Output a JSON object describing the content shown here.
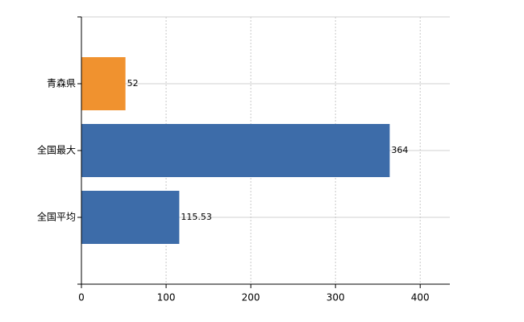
{
  "chart_data": {
    "type": "bar",
    "orientation": "horizontal",
    "categories": [
      "青森県",
      "全国最大",
      "全国平均"
    ],
    "values": [
      52,
      364,
      115.53
    ],
    "colors": [
      "#f0922f",
      "#3d6ca9",
      "#3d6ca9"
    ],
    "xlim": [
      0,
      435
    ],
    "xticks": [
      0,
      100,
      200,
      300,
      400
    ],
    "grid": true
  }
}
